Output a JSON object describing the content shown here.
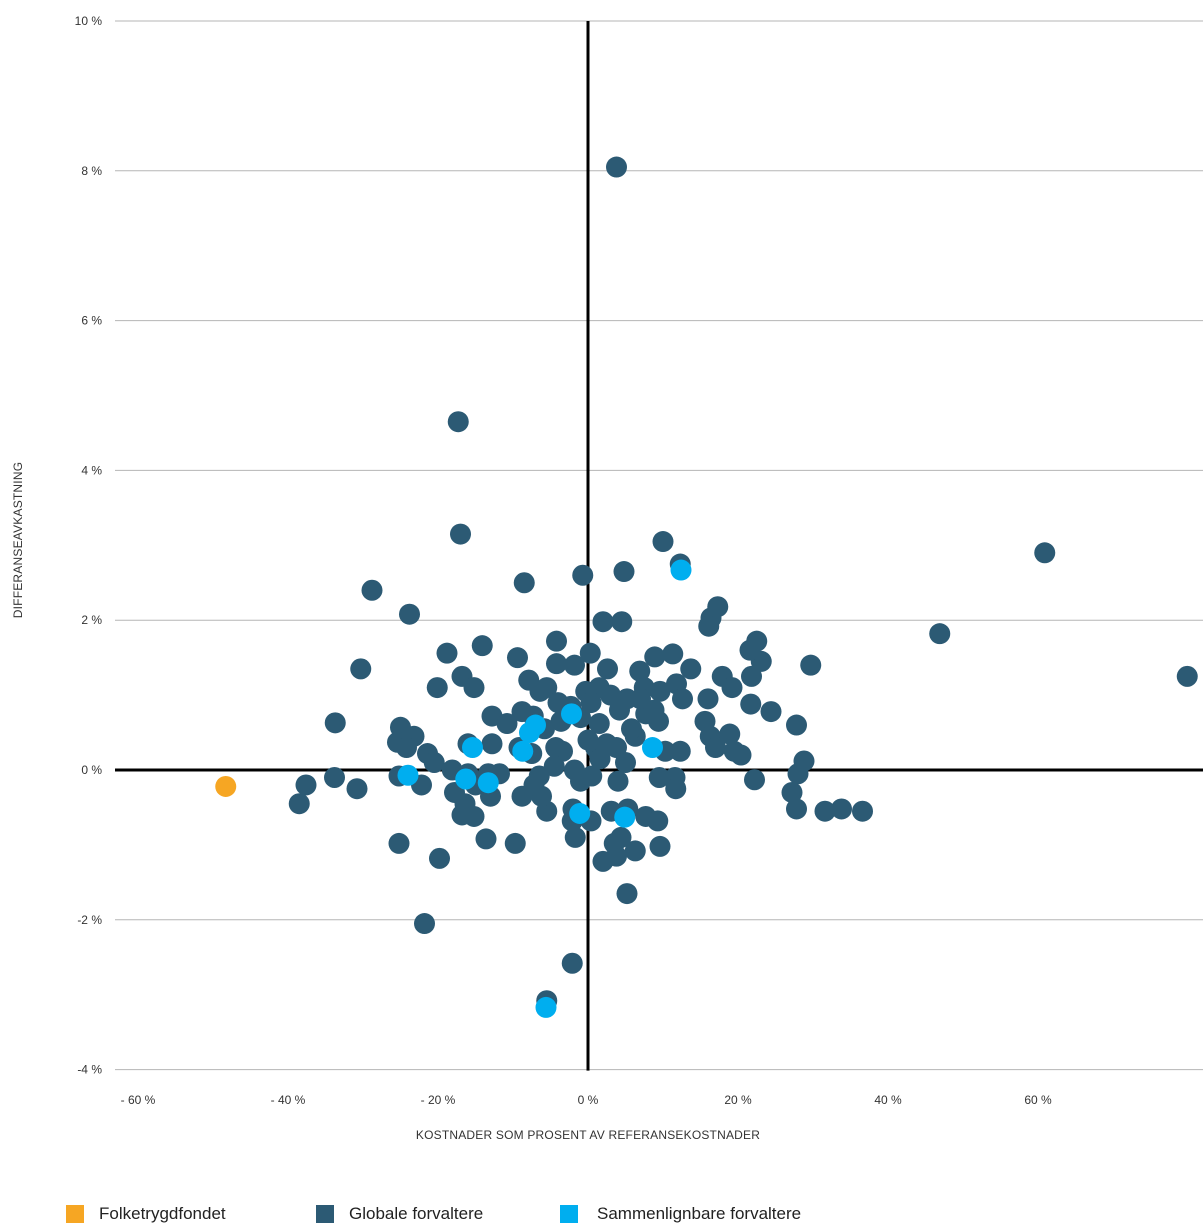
{
  "chart_data": {
    "type": "scatter",
    "xlabel": "KOSTNADER SOM PROSENT AV REFERANSEKOSTNADER",
    "ylabel": "DIFFERANSEAVKASTNING",
    "xlim": [
      -62,
      82
    ],
    "ylim": [
      -4,
      10
    ],
    "grid": "horizontal",
    "legend_position": "bottom-left",
    "x_ticks": [
      {
        "value": -60,
        "label": "- 60 %"
      },
      {
        "value": -40,
        "label": "- 40 %"
      },
      {
        "value": -20,
        "label": "- 20 %"
      },
      {
        "value": 0,
        "label": "0 %"
      },
      {
        "value": 20,
        "label": "20 %"
      },
      {
        "value": 40,
        "label": "40 %"
      },
      {
        "value": 60,
        "label": "60 %"
      }
    ],
    "y_ticks": [
      {
        "value": 10,
        "label": "10 %"
      },
      {
        "value": 8,
        "label": "8 %"
      },
      {
        "value": 6,
        "label": "6 %"
      },
      {
        "value": 4,
        "label": "4 %"
      },
      {
        "value": 2,
        "label": "2 %"
      },
      {
        "value": 0,
        "label": "0 %"
      },
      {
        "value": -2,
        "label": "-2 %"
      },
      {
        "value": -4,
        "label": "-4 %"
      }
    ],
    "series": [
      {
        "name": "Globale forvaltere",
        "color": "#2c5a74",
        "points": [
          [
            3.8,
            8.05
          ],
          [
            -17.3,
            4.65
          ],
          [
            -17.0,
            3.15
          ],
          [
            60.9,
            2.9
          ],
          [
            10.0,
            3.05
          ],
          [
            12.3,
            2.75
          ],
          [
            4.8,
            2.65
          ],
          [
            -0.7,
            2.6
          ],
          [
            -8.5,
            2.5
          ],
          [
            -28.8,
            2.4
          ],
          [
            -23.8,
            2.08
          ],
          [
            2.0,
            1.98
          ],
          [
            4.5,
            1.98
          ],
          [
            17.3,
            2.18
          ],
          [
            16.4,
            2.03
          ],
          [
            16.1,
            1.92
          ],
          [
            46.9,
            1.82
          ],
          [
            22.5,
            1.72
          ],
          [
            -4.2,
            1.72
          ],
          [
            -14.1,
            1.66
          ],
          [
            -18.8,
            1.56
          ],
          [
            0.3,
            1.56
          ],
          [
            8.9,
            1.51
          ],
          [
            11.3,
            1.55
          ],
          [
            -9.4,
            1.5
          ],
          [
            -16.8,
            1.25
          ],
          [
            -15.2,
            1.1
          ],
          [
            -20.1,
            1.1
          ],
          [
            -30.3,
            1.35
          ],
          [
            23.1,
            1.45
          ],
          [
            29.7,
            1.4
          ],
          [
            21.6,
            1.6
          ],
          [
            13.7,
            1.35
          ],
          [
            6.9,
            1.32
          ],
          [
            2.6,
            1.35
          ],
          [
            -1.8,
            1.4
          ],
          [
            -4.2,
            1.42
          ],
          [
            -7.9,
            1.2
          ],
          [
            -6.4,
            1.05
          ],
          [
            -8.8,
            0.78
          ],
          [
            -5.5,
            1.1
          ],
          [
            17.9,
            1.25
          ],
          [
            19.2,
            1.1
          ],
          [
            21.8,
            1.25
          ],
          [
            24.4,
            0.78
          ],
          [
            21.7,
            0.88
          ],
          [
            16.0,
            0.95
          ],
          [
            11.8,
            1.15
          ],
          [
            12.6,
            0.95
          ],
          [
            9.6,
            1.05
          ],
          [
            7.5,
            1.1
          ],
          [
            5.2,
            0.95
          ],
          [
            3.0,
            1.0
          ],
          [
            1.5,
            1.1
          ],
          [
            -0.3,
            1.05
          ],
          [
            -2.3,
            0.85
          ],
          [
            -3.6,
            0.65
          ],
          [
            -5.8,
            0.55
          ],
          [
            -7.3,
            0.72
          ],
          [
            -12.8,
            0.72
          ],
          [
            -10.8,
            0.62
          ],
          [
            -33.7,
            0.63
          ],
          [
            -25.0,
            0.57
          ],
          [
            -23.2,
            0.45
          ],
          [
            -25.4,
            0.37
          ],
          [
            -24.2,
            0.3
          ],
          [
            -21.4,
            0.22
          ],
          [
            -20.5,
            0.1
          ],
          [
            -16.0,
            0.35
          ],
          [
            -12.8,
            0.35
          ],
          [
            -9.2,
            0.3
          ],
          [
            -7.5,
            0.22
          ],
          [
            -4.3,
            0.3
          ],
          [
            -3.4,
            0.25
          ],
          [
            -1.8,
            0.0
          ],
          [
            0.0,
            0.4
          ],
          [
            1.0,
            0.3
          ],
          [
            1.6,
            0.15
          ],
          [
            2.5,
            0.35
          ],
          [
            3.8,
            0.3
          ],
          [
            5.0,
            0.1
          ],
          [
            6.3,
            0.45
          ],
          [
            7.7,
            0.75
          ],
          [
            9.4,
            0.65
          ],
          [
            10.3,
            0.25
          ],
          [
            12.3,
            0.25
          ],
          [
            15.6,
            0.65
          ],
          [
            16.3,
            0.45
          ],
          [
            17.0,
            0.3
          ],
          [
            18.9,
            0.48
          ],
          [
            19.5,
            0.25
          ],
          [
            20.4,
            0.2
          ],
          [
            27.8,
            0.6
          ],
          [
            28.8,
            0.12
          ],
          [
            28.0,
            -0.05
          ],
          [
            27.2,
            -0.3
          ],
          [
            27.8,
            -0.52
          ],
          [
            31.6,
            -0.55
          ],
          [
            33.8,
            -0.52
          ],
          [
            36.6,
            -0.55
          ],
          [
            22.2,
            -0.13
          ],
          [
            11.6,
            -0.1
          ],
          [
            11.7,
            -0.25
          ],
          [
            9.5,
            -0.1
          ],
          [
            4.0,
            -0.15
          ],
          [
            3.1,
            -0.55
          ],
          [
            5.3,
            -0.52
          ],
          [
            7.7,
            -0.62
          ],
          [
            9.3,
            -0.68
          ],
          [
            4.4,
            -0.9
          ],
          [
            3.5,
            -0.98
          ],
          [
            6.3,
            -1.08
          ],
          [
            9.6,
            -1.02
          ],
          [
            3.8,
            -1.15
          ],
          [
            2.0,
            -1.22
          ],
          [
            5.2,
            -1.65
          ],
          [
            -2.0,
            -0.52
          ],
          [
            -2.1,
            -0.68
          ],
          [
            -1.7,
            -0.9
          ],
          [
            0.4,
            -0.68
          ],
          [
            -5.5,
            -0.55
          ],
          [
            -6.2,
            -0.35
          ],
          [
            -7.2,
            -0.2
          ],
          [
            -8.8,
            -0.35
          ],
          [
            -11.8,
            -0.05
          ],
          [
            -13.3,
            -0.05
          ],
          [
            -16.0,
            -0.05
          ],
          [
            -18.1,
            0.0
          ],
          [
            -15.0,
            -0.2
          ],
          [
            -17.8,
            -0.3
          ],
          [
            -16.4,
            -0.45
          ],
          [
            -16.8,
            -0.6
          ],
          [
            -15.2,
            -0.62
          ],
          [
            -13.0,
            -0.35
          ],
          [
            -13.6,
            -0.92
          ],
          [
            -9.7,
            -0.98
          ],
          [
            -25.2,
            -0.08
          ],
          [
            -22.2,
            -0.2
          ],
          [
            -33.8,
            -0.1
          ],
          [
            -37.6,
            -0.2
          ],
          [
            -38.5,
            -0.45
          ],
          [
            -30.8,
            -0.25
          ],
          [
            -25.2,
            -0.98
          ],
          [
            -19.8,
            -1.18
          ],
          [
            -21.8,
            -2.05
          ],
          [
            -2.1,
            -2.58
          ],
          [
            -5.5,
            -3.08
          ],
          [
            79.9,
            1.25
          ],
          [
            -1.0,
            0.7
          ],
          [
            0.4,
            0.9
          ],
          [
            5.8,
            0.55
          ],
          [
            7.0,
            0.95
          ],
          [
            8.8,
            0.8
          ],
          [
            -4.0,
            0.9
          ],
          [
            1.5,
            0.62
          ],
          [
            4.2,
            0.8
          ],
          [
            0.5,
            -0.08
          ],
          [
            -1.0,
            -0.15
          ],
          [
            -4.5,
            0.05
          ],
          [
            -6.5,
            -0.08
          ]
        ]
      },
      {
        "name": "Sammenlignbare forvaltere",
        "color": "#00aeef",
        "points": [
          [
            12.4,
            2.67
          ],
          [
            -2.2,
            0.75
          ],
          [
            -7.0,
            0.6
          ],
          [
            -7.8,
            0.5
          ],
          [
            -8.7,
            0.25
          ],
          [
            -15.4,
            0.3
          ],
          [
            8.6,
            0.3
          ],
          [
            -24.0,
            -0.07
          ],
          [
            -16.3,
            -0.12
          ],
          [
            -13.3,
            -0.17
          ],
          [
            -1.1,
            -0.58
          ],
          [
            4.9,
            -0.63
          ],
          [
            -5.6,
            -3.17
          ]
        ]
      },
      {
        "name": "Folketrygdfondet",
        "color": "#f6a623",
        "points": [
          [
            -48.3,
            -0.22
          ]
        ]
      }
    ]
  },
  "legend": {
    "items": [
      {
        "label": "Folketrygdfondet",
        "color": "#f6a623"
      },
      {
        "label": "Globale forvaltere",
        "color": "#2c5a74"
      },
      {
        "label": "Sammenlignbare forvaltere",
        "color": "#00aeef"
      }
    ]
  }
}
